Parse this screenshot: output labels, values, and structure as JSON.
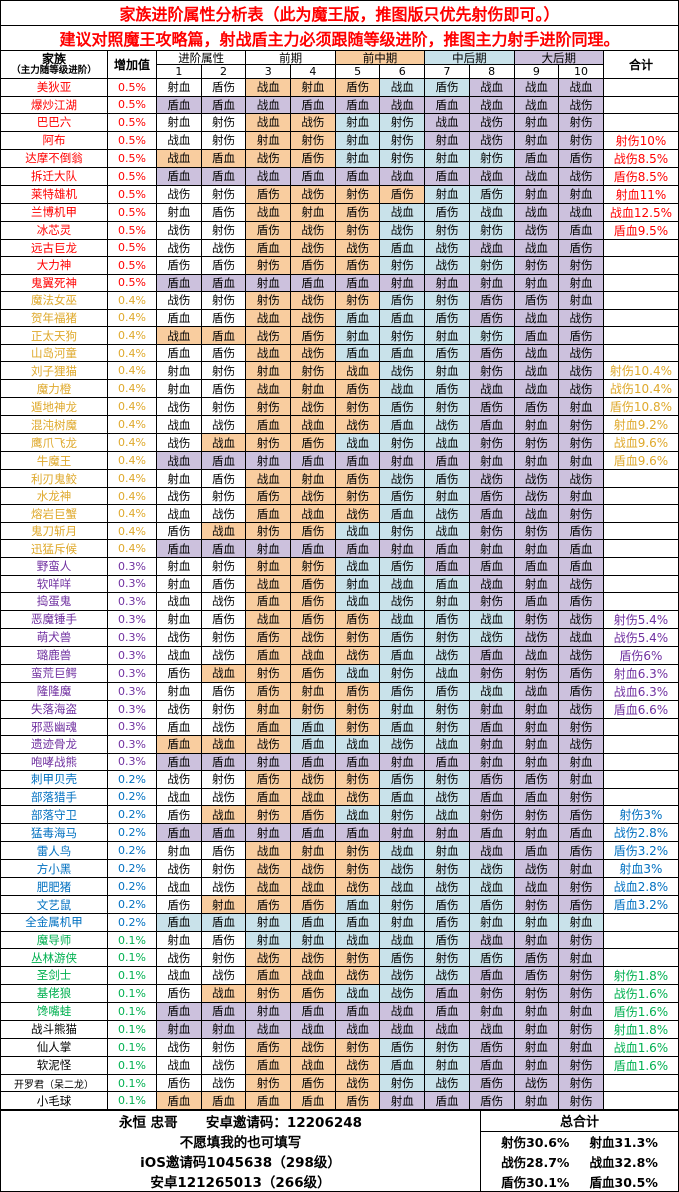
{
  "titles": {
    "line1": "家族进阶属性分析表（此为魔王版，推图版只优先射伤即可。）",
    "line2": "建议对照魔王攻略篇，射战盾主力必须跟随等级进阶，推图主力射手进阶同理。"
  },
  "header": {
    "family_label": "家族",
    "family_sub": "（主力随等级进阶）",
    "inc_label": "增加值",
    "total_label": "合计",
    "groups": [
      {
        "label": "进阶属性",
        "bg": "w"
      },
      {
        "label": "前期",
        "bg": "w"
      },
      {
        "label": "前中期",
        "bg": "o"
      },
      {
        "label": "中后期",
        "bg": "b"
      },
      {
        "label": "大后期",
        "bg": "p"
      }
    ],
    "numbers": [
      "1",
      "2",
      "3",
      "4",
      "5",
      "6",
      "7",
      "8",
      "9",
      "10"
    ]
  },
  "cell_colors": {
    "w": "#ffffff",
    "o": "#f9cd9f",
    "b": "#c9e2ea",
    "p": "#ccc1dd"
  },
  "group_colors": {
    "r": "#ff0000",
    "y": "#dfa92c",
    "v": "#7030a0",
    "b": "#0070c0",
    "g": "#00b050",
    "k": "#000000"
  },
  "rows": [
    {
      "n": "美狄亚",
      "g": "r",
      "i": "0.5%",
      "v": "射血,盾伤,战血,射血,盾伤,战血,盾伤,战血,战血,战血",
      "c": "wwooobbppp",
      "s": ""
    },
    {
      "n": "爆炒江湖",
      "g": "r",
      "i": "0.5%",
      "v": "盾血,盾血,战血,盾血,盾血,战血,盾血,战血,战血,战伤",
      "c": "pppppppppp",
      "s": ""
    },
    {
      "n": "巴巴六",
      "g": "r",
      "i": "0.5%",
      "v": "射血,射伤,战血,战伤,射血,射伤,战血,战伤,射血,射伤",
      "c": "wwoobbpppp",
      "s": ""
    },
    {
      "n": "阿布",
      "g": "r",
      "i": "0.5%",
      "v": "战血,射伤,射血,射伤,射血,射伤,射血,战伤,射血,射伤",
      "c": "wwoobbpppp",
      "s": "射伤10%"
    },
    {
      "n": "达摩不倒翁",
      "g": "r",
      "i": "0.5%",
      "v": "战血,盾血,战伤,盾伤,射血,射伤,射血,射伤,盾血,盾伤",
      "c": "oooobbbbpp",
      "s": "战伤8.5%"
    },
    {
      "n": "拆迁大队",
      "g": "r",
      "i": "0.5%",
      "v": "盾血,盾血,战血,盾血,盾血,战血,盾血,战血,战血,战伤",
      "c": "pppppppppp",
      "s": "盾伤8.5%"
    },
    {
      "n": "莱特雄机",
      "g": "r",
      "i": "0.5%",
      "v": "战伤,射伤,盾伤,战伤,射伤,盾伤,射血,盾伤,射血,射血",
      "c": "wwoooobbpp",
      "s": "射血11%"
    },
    {
      "n": "兰博机甲",
      "g": "r",
      "i": "0.5%",
      "v": "射血,盾伤,战血,射血,盾伤,战血,盾伤,战血,战血,战血",
      "c": "wwooobbbpp",
      "s": "战血12.5%"
    },
    {
      "n": "冰芯灵",
      "g": "r",
      "i": "0.5%",
      "v": "战伤,射伤,盾伤,战伤,射伤,战伤,射伤,射伤,战伤,盾血",
      "c": "wwooobbbpp",
      "s": "盾血9.5%"
    },
    {
      "n": "远古巨龙",
      "g": "r",
      "i": "0.5%",
      "v": "战伤,战伤,盾血,战伤,战伤,盾血,战伤,战血,战血,盾伤",
      "c": "wwooobbppp",
      "s": ""
    },
    {
      "n": "大力神",
      "g": "r",
      "i": "0.5%",
      "v": "盾伤,盾伤,射伤,盾伤,盾伤,射伤,战伤,射伤,射伤,射伤",
      "c": "wwooobbbpp",
      "s": ""
    },
    {
      "n": "鬼翼死神",
      "g": "r",
      "i": "0.5%",
      "v": "盾血,盾血,射血,盾血,盾血,射血,射血,射血,射血,射血",
      "c": "pppppppppp",
      "s": ""
    },
    {
      "n": "魔法女巫",
      "g": "y",
      "i": "0.4%",
      "v": "战伤,射伤,射伤,战伤,射伤,盾伤,射伤,盾伤,盾伤,射血",
      "c": "wwooobbppp",
      "s": ""
    },
    {
      "n": "贺年福猪",
      "g": "y",
      "i": "0.4%",
      "v": "盾血,盾伤,战血,战伤,盾血,盾血,盾伤,盾伤,战血,战伤",
      "c": "wwoobbbppp",
      "s": ""
    },
    {
      "n": "正太天狗",
      "g": "y",
      "i": "0.4%",
      "v": "战血,盾血,战伤,盾伤,射血,射伤,射血,射伤,盾血,盾伤",
      "c": "oooobbbbpp",
      "s": ""
    },
    {
      "n": "山岛河童",
      "g": "y",
      "i": "0.4%",
      "v": "盾血,盾伤,战血,战伤,盾血,盾血,盾伤,盾伤,战血,战伤",
      "c": "wwoobbbppp",
      "s": ""
    },
    {
      "n": "刘子狸猫",
      "g": "y",
      "i": "0.4%",
      "v": "射血,射伤,射血,射伤,战血,战伤,射血,射伤,战血,战伤",
      "c": "wwooobbppp",
      "s": "射伤10.4%"
    },
    {
      "n": "魔力橙",
      "g": "y",
      "i": "0.4%",
      "v": "射血,盾伤,战血,射血,盾伤,战血,盾伤,战血,战血,战伤",
      "c": "wwooobbppp",
      "s": "战伤10.4%"
    },
    {
      "n": "遁地神龙",
      "g": "y",
      "i": "0.4%",
      "v": "战伤,射伤,射伤,战伤,射伤,盾伤,射伤,盾伤,盾伤,射血",
      "c": "wwooobbppp",
      "s": "盾伤10.8%"
    },
    {
      "n": "混沌树魔",
      "g": "y",
      "i": "0.4%",
      "v": "战血,战伤,盾血,战血,战伤,盾血,战伤,盾血,射血,射伤",
      "c": "wwooobbppp",
      "s": "射血9.2%"
    },
    {
      "n": "鹰爪飞龙",
      "g": "y",
      "i": "0.4%",
      "v": "战伤,战血,射伤,盾伤,战血,射伤,战血,射伤,射伤,射伤",
      "c": "wooobbbppp",
      "s": "战血9.6%"
    },
    {
      "n": "牛魔王",
      "g": "y",
      "i": "0.4%",
      "v": "战血,盾血,射血,盾血,盾血,射血,盾血,射血,射血,射血",
      "c": "pppppppppp",
      "s": "盾血9.6%"
    },
    {
      "n": "利刃鬼鲛",
      "g": "y",
      "i": "0.4%",
      "v": "射血,盾伤,战血,射血,盾伤,战伤,盾伤,战伤,战伤,战伤",
      "c": "wwooobbppp",
      "s": ""
    },
    {
      "n": "水龙神",
      "g": "y",
      "i": "0.4%",
      "v": "战伤,射伤,盾伤,战伤,射伤,盾伤,射血,盾伤,战伤,射血",
      "c": "wwooobbppp",
      "s": ""
    },
    {
      "n": "熔岩巨蟹",
      "g": "y",
      "i": "0.4%",
      "v": "战血,战伤,盾血,战血,战伤,盾血,战伤,盾血,战血,射伤",
      "c": "wwooobbppp",
      "s": ""
    },
    {
      "n": "鬼刀斩月",
      "g": "y",
      "i": "0.4%",
      "v": "盾伤,战血,射伤,盾伤,战血,射伤,战血,射伤,射伤,盾伤",
      "c": "wooobbbppp",
      "s": ""
    },
    {
      "n": "迅猛斥候",
      "g": "y",
      "i": "0.4%",
      "v": "盾血,盾血,射血,盾血,盾血,射血,盾血,射血,射血,盾血",
      "c": "pppppppppp",
      "s": ""
    },
    {
      "n": "野蛮人",
      "g": "v",
      "i": "0.3%",
      "v": "射血,射伤,射血,射伤,战血,盾伤,盾血,盾血,盾血,盾血",
      "c": "wwoobbpppp",
      "s": ""
    },
    {
      "n": "软咩咩",
      "g": "v",
      "i": "0.3%",
      "v": "射血,盾伤,战血,盾伤,射血,战血,盾血,战血,射血,战伤",
      "c": "wwoobbbppp",
      "s": ""
    },
    {
      "n": "捣蛋鬼",
      "g": "v",
      "i": "0.3%",
      "v": "战血,战伤,盾血,盾伤,战血,战伤,射血,射伤,盾血,盾伤",
      "c": "wwoobbbppp",
      "s": ""
    },
    {
      "n": "恶魔锤手",
      "g": "v",
      "i": "0.3%",
      "v": "射血,盾伤,战血,盾伤,盾伤,战血,盾伤,战血,射伤,战伤",
      "c": "wwooobbbpp",
      "s": "射伤5.4%"
    },
    {
      "n": "萌犬兽",
      "g": "v",
      "i": "0.3%",
      "v": "战伤,射伤,盾伤,战伤,射伤,盾伤,射伤,战伤,战伤,战血",
      "c": "wwooobbbpp",
      "s": "战伤5.4%"
    },
    {
      "n": "璐鹿兽",
      "g": "v",
      "i": "0.3%",
      "v": "战血,战伤,盾血,战血,战伤,盾血,战伤,盾血,战血,战伤",
      "c": "wwooobbppp",
      "s": "盾伤6%"
    },
    {
      "n": "蛮荒巨鳄",
      "g": "v",
      "i": "0.3%",
      "v": "盾伤,战血,射伤,盾伤,战血,射伤,战血,射伤,射伤,盾伤",
      "c": "wooobbbppp",
      "s": "射血6.3%"
    },
    {
      "n": "隆隆魔",
      "g": "v",
      "i": "0.3%",
      "v": "射血,盾伤,盾伤,射血,盾伤,盾伤,盾伤,战血,战血,盾伤",
      "c": "wwooobbbpp",
      "s": "战血6.3%"
    },
    {
      "n": "失落海盗",
      "g": "v",
      "i": "0.3%",
      "v": "战伤,射伤,射血,射伤,射伤,射血,射伤,射血,射血,战伤",
      "c": "wwooobbppp",
      "s": "盾血6.6%"
    },
    {
      "n": "邪恶幽魂",
      "g": "v",
      "i": "0.3%",
      "v": "盾血,战伤,盾血,盾血,射伤,盾血,射伤,盾血,射血,射伤",
      "c": "wwobobbppp",
      "s": ""
    },
    {
      "n": "遗迹骨龙",
      "g": "v",
      "i": "0.3%",
      "v": "盾血,战血,战伤,盾血,战血,战伤,战血,射血,射血,战伤",
      "c": "ooobbbbppp",
      "s": ""
    },
    {
      "n": "咆哮战熊",
      "g": "v",
      "i": "0.3%",
      "v": "盾血,盾血,射血,盾血,盾血,射血,盾血,射血,射血,射血",
      "c": "pppppppppp",
      "s": ""
    },
    {
      "n": "刺甲贝壳",
      "g": "b",
      "i": "0.2%",
      "v": "战伤,射伤,盾伤,战伤,射伤,盾伤,射伤,盾伤,盾伤,射血",
      "c": "wwooobbppp",
      "s": ""
    },
    {
      "n": "部落猎手",
      "g": "b",
      "i": "0.2%",
      "v": "战血,战伤,盾血,战血,战伤,盾血,战伤,盾血,盾血,射伤",
      "c": "wwooobbppp",
      "s": ""
    },
    {
      "n": "部落守卫",
      "g": "b",
      "i": "0.2%",
      "v": "盾伤,战血,射伤,盾伤,战血,射伤,战血,射伤,射伤,盾伤",
      "c": "wooobbbppp",
      "s": "射伤3%"
    },
    {
      "n": "猛毒海马",
      "g": "b",
      "i": "0.2%",
      "v": "盾血,盾血,射血,盾血,盾血,射血,射血,盾血,射血,盾血",
      "c": "pppppppppp",
      "s": "战伤2.8%"
    },
    {
      "n": "雷人鸟",
      "g": "b",
      "i": "0.2%",
      "v": "射血,盾伤,战血,射血,射伤,战血,射血,战血,盾血,盾伤",
      "c": "wwooobbppp",
      "s": "盾伤3.2%"
    },
    {
      "n": "方小黑",
      "g": "b",
      "i": "0.2%",
      "v": "战伤,射伤,战伤,战伤,射伤,战伤,射伤,战伤,战伤,射血",
      "c": "wwooobbbpp",
      "s": "射血3%"
    },
    {
      "n": "肥肥猪",
      "g": "b",
      "i": "0.2%",
      "v": "战血,战伤,战血,战血,战伤,战血,战伤,战血,战血,射伤",
      "c": "wwooobbbpp",
      "s": "战血2.8%"
    },
    {
      "n": "文艺鼠",
      "g": "b",
      "i": "0.2%",
      "v": "盾伤,射血,盾伤,盾伤,盾血,射伤,盾伤,盾伤,射伤,盾伤",
      "c": "wooobbbbpp",
      "s": "盾血3.2%"
    },
    {
      "n": "全金属机甲",
      "g": "b",
      "i": "0.2%",
      "v": "盾血,盾血,射血,盾血,盾血,射血,盾伤,射血,射血,射血",
      "c": "bbbbbbbbbb",
      "s": ""
    },
    {
      "n": "魔导师",
      "g": "g",
      "i": "0.1%",
      "v": "射血,盾伤,射血,射血,战血,战血,盾伤,战血,射血,射伤",
      "c": "wwbbbbbppp",
      "s": ""
    },
    {
      "n": "丛林游侠",
      "g": "g",
      "i": "0.1%",
      "v": "战伤,射伤,战伤,战伤,射伤,盾伤,射伤,盾伤,盾伤,射血",
      "c": "wwooobbbpp",
      "s": ""
    },
    {
      "n": "圣剑士",
      "g": "g",
      "i": "0.1%",
      "v": "战血,战伤,盾血,战血,战伤,战伤,战伤,盾血,盾伤,射伤",
      "c": "wwooobbppp",
      "s": "射伤1.8%"
    },
    {
      "n": "基佬狼",
      "g": "g",
      "i": "0.1%",
      "v": "盾伤,战血,射伤,盾伤,战血,战伤,盾血,射伤,射伤,射伤",
      "c": "wooobbpppp",
      "s": "战伤1.6%"
    },
    {
      "n": "馋嘴蛙",
      "g": "g",
      "i": "0.1%",
      "v": "盾血,盾血,射血,盾血,盾血,战血,盾血,射血,射血,射血",
      "c": "pppppppppp",
      "s": "盾伤1.6%"
    },
    {
      "n": "战斗熊猫",
      "g": "k",
      "i": "0.1%",
      "v": "射血,射血,战血,战血,战血,战血,战血,战血,射血,射伤",
      "c": "pppppppppp",
      "s": "射血1.8%"
    },
    {
      "n": "仙人掌",
      "g": "k",
      "i": "0.1%",
      "v": "战伤,射伤,盾伤,战伤,射伤,盾伤,射伤,盾伤,射血,射血",
      "c": "wwooobbppp",
      "s": "战血1.6%"
    },
    {
      "n": "软泥怪",
      "g": "k",
      "i": "0.1%",
      "v": "战血,战伤,盾血,战血,战伤,盾血,射血,盾血,射血,射伤",
      "c": "wwooobbppp",
      "s": "盾血1.6%"
    },
    {
      "n": "开罗君（呆二龙）",
      "g": "k",
      "i": "0.1%",
      "v": "盾伤,战伤,射伤,盾伤,战伤,射伤,战伤,盾伤,战伤,射伤",
      "c": "wwooobbppp",
      "s": ""
    },
    {
      "n": "小毛球",
      "g": "k",
      "i": "0.1%",
      "v": "盾血,盾血,盾血,盾血,盾伤,射血,盾血,盾伤,射血,射伤",
      "c": "oooooppppp",
      "s": ""
    }
  ],
  "footer": {
    "line1": "永恒 忠哥      安卓邀请码：12206248",
    "line2": "不愿填我的也可填写",
    "line3": "iOS邀请码1045638（298级）",
    "line4": "安卓121265013（266级）",
    "total_title": "总合计",
    "totals": [
      [
        "射伤30.6%",
        "射血31.3%"
      ],
      [
        "战伤28.7%",
        "战血32.8%"
      ],
      [
        "盾伤30.1%",
        "盾血30.5%"
      ]
    ]
  }
}
